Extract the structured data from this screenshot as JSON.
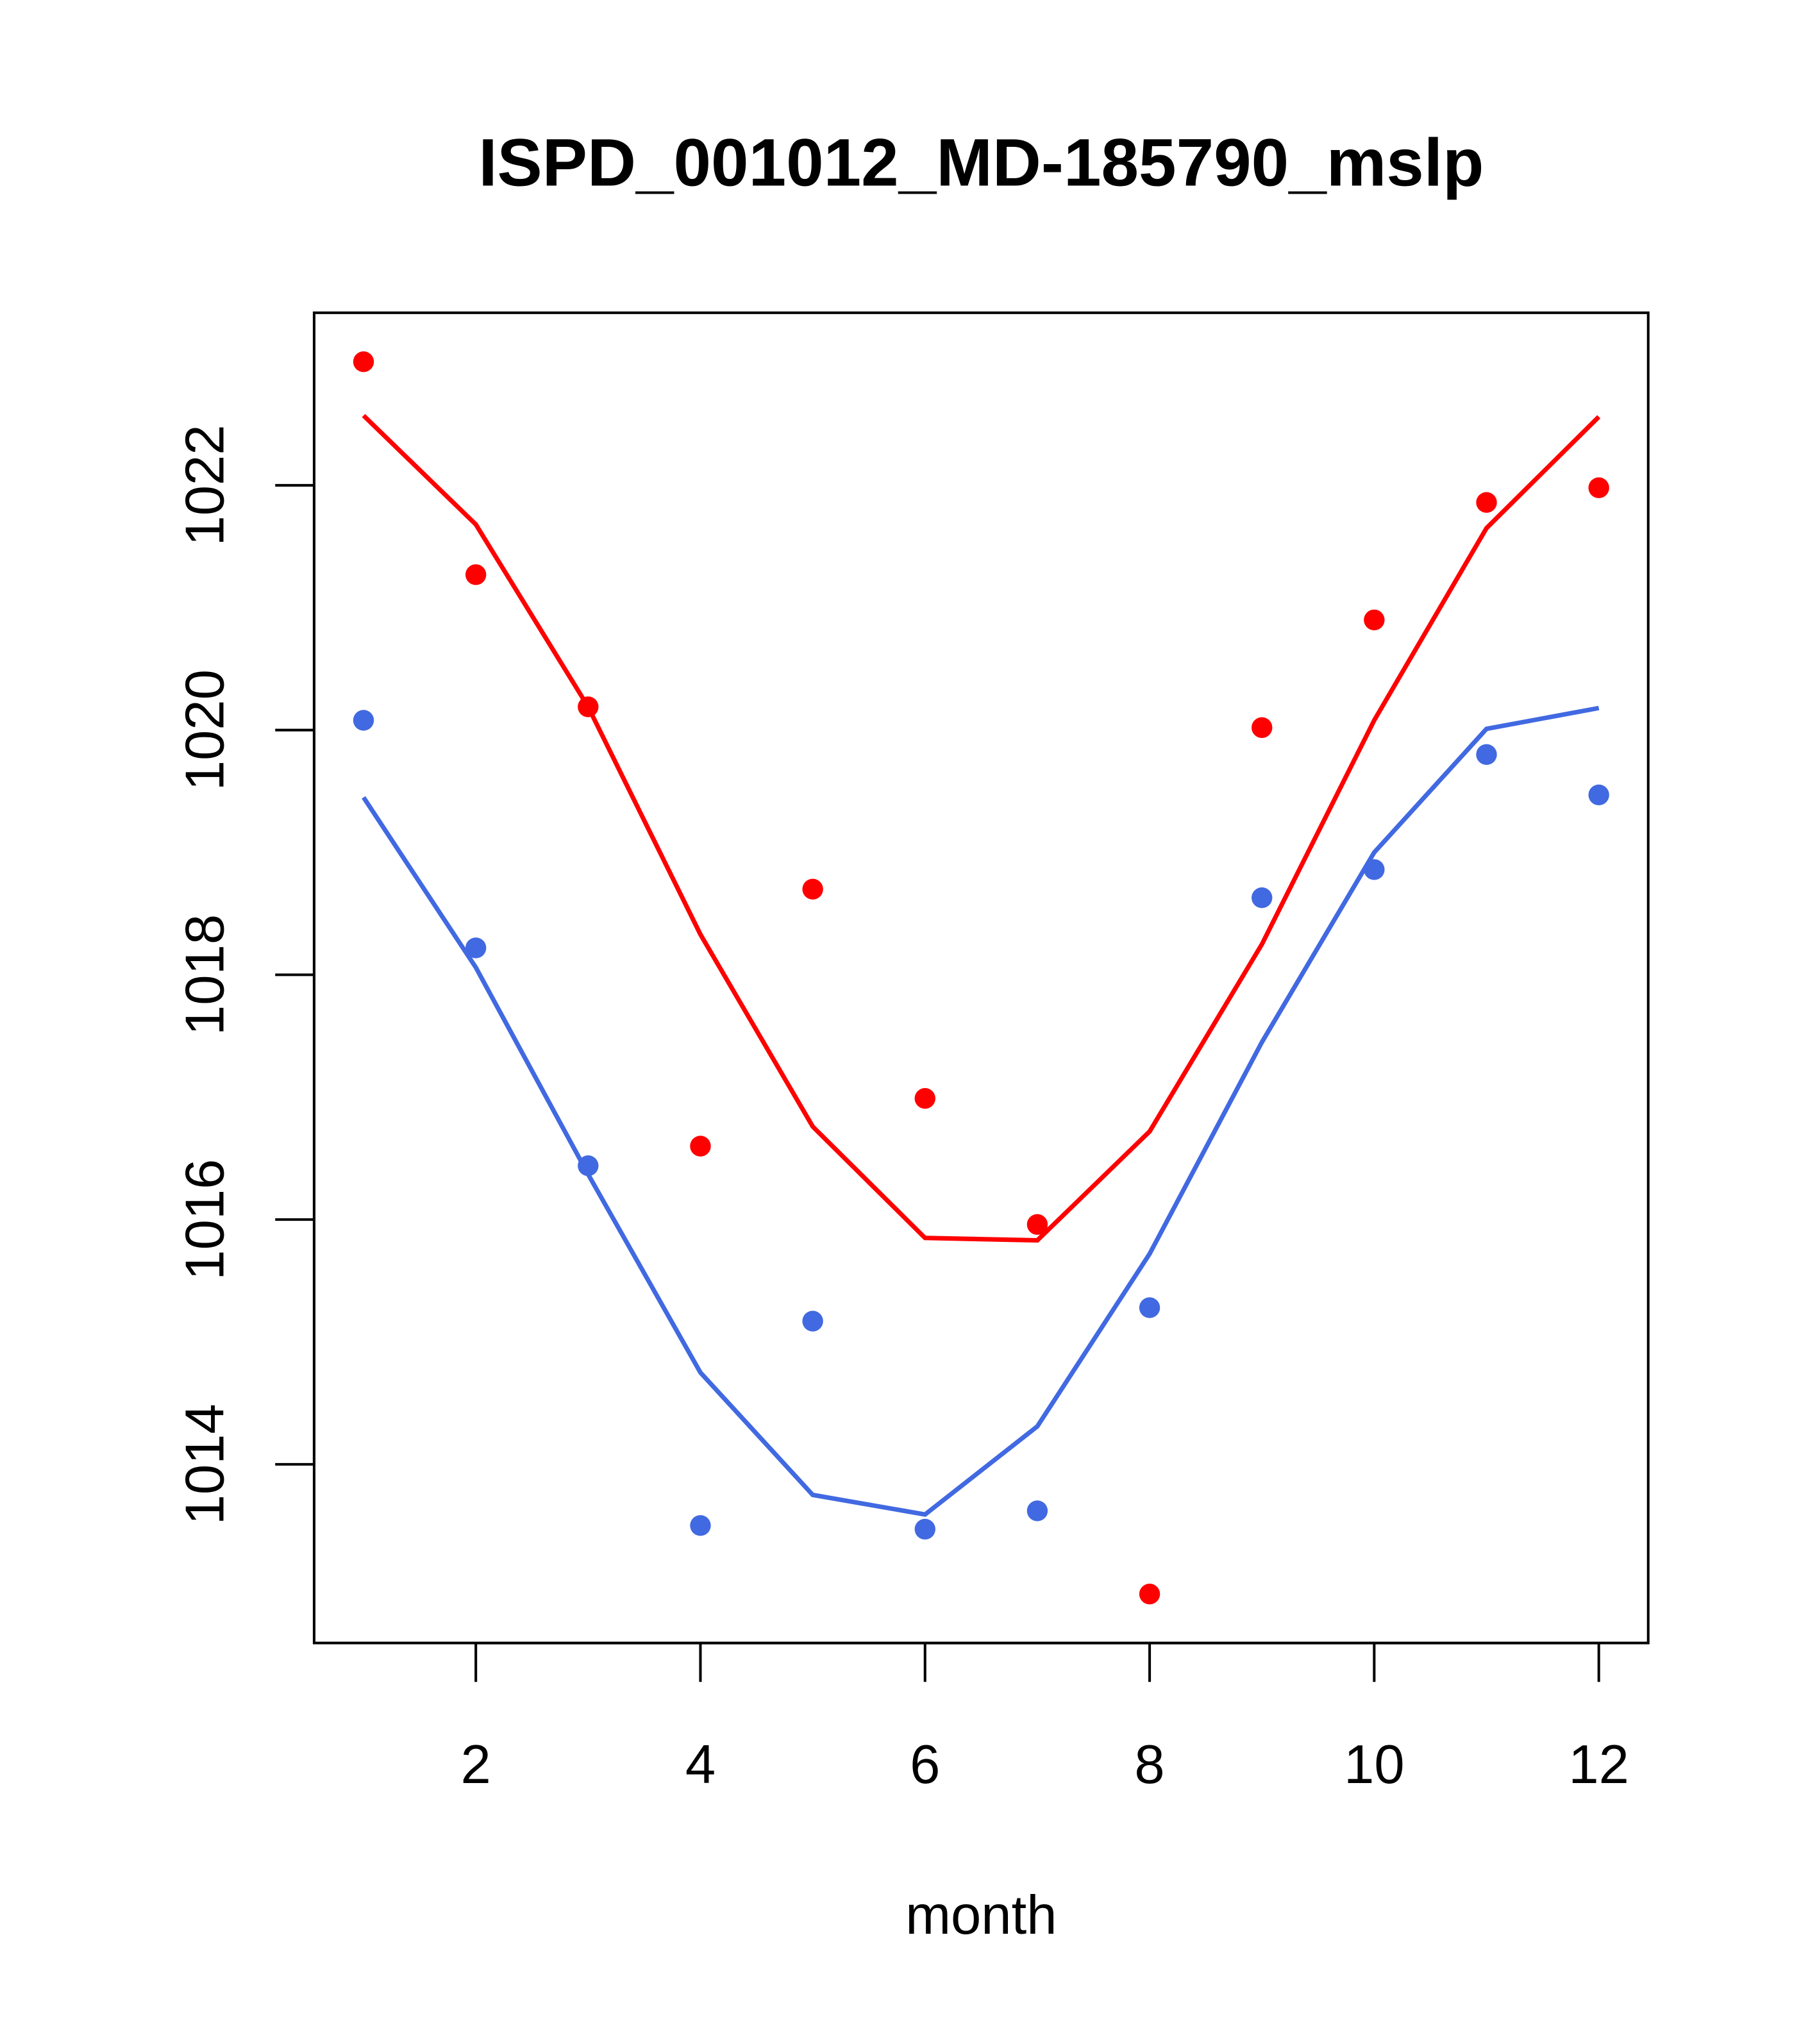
{
  "chart_data": {
    "type": "line",
    "title": "ISPD_001012_MD-185790_mslp",
    "xlabel": "month",
    "ylabel": "",
    "xlim": [
      0.56,
      12.44
    ],
    "ylim": [
      1012.54,
      1023.41
    ],
    "x_ticks": [
      2,
      4,
      6,
      8,
      10,
      12
    ],
    "y_ticks": [
      1014,
      1016,
      1018,
      1020,
      1022
    ],
    "grid": false,
    "x": [
      1,
      2,
      3,
      4,
      5,
      6,
      7,
      8,
      9,
      10,
      11,
      12
    ],
    "series": [
      {
        "name": "red points",
        "kind": "scatter",
        "color": "#ff0000",
        "values": [
          1023.01,
          1021.27,
          1020.19,
          1016.6,
          1018.7,
          1016.99,
          1015.96,
          1012.94,
          1020.02,
          1020.9,
          1021.86,
          1021.98
        ]
      },
      {
        "name": "red line",
        "kind": "line",
        "color": "#ff0000",
        "values": [
          1022.57,
          1021.68,
          1020.19,
          1018.33,
          1016.76,
          1015.85,
          1015.83,
          1016.72,
          1018.25,
          1020.08,
          1021.65,
          1022.56
        ]
      },
      {
        "name": "blue points",
        "kind": "scatter",
        "color": "#4169e1",
        "values": [
          1020.08,
          1018.22,
          1016.44,
          1013.5,
          1015.17,
          1013.47,
          1013.62,
          1015.28,
          1018.63,
          1018.86,
          1019.8,
          1019.47
        ]
      },
      {
        "name": "blue line",
        "kind": "line",
        "color": "#4169e1",
        "values": [
          1019.45,
          1018.06,
          1016.37,
          1014.75,
          1013.75,
          1013.59,
          1014.31,
          1015.72,
          1017.45,
          1019.0,
          1020.01,
          1020.18
        ]
      }
    ]
  }
}
